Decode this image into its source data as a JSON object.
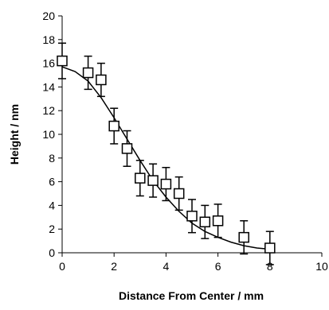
{
  "chart_data": {
    "type": "scatter",
    "title": "",
    "xlabel": "Distance From Center / mm",
    "ylabel": "Height / nm",
    "xlim": [
      0,
      10
    ],
    "ylim": [
      0,
      20
    ],
    "x_ticks": [
      0,
      2,
      4,
      6,
      8,
      10
    ],
    "y_ticks": [
      0,
      2,
      4,
      6,
      8,
      10,
      12,
      14,
      16,
      18,
      20
    ],
    "grid": false,
    "legend": "none",
    "series": [
      {
        "marker": "open-square",
        "points": [
          {
            "x": 0,
            "y": 16.2,
            "err": 1.5
          },
          {
            "x": 1,
            "y": 15.2,
            "err": 1.4
          },
          {
            "x": 1.5,
            "y": 14.6,
            "err": 1.4
          },
          {
            "x": 2,
            "y": 10.7,
            "err": 1.5
          },
          {
            "x": 2.5,
            "y": 8.8,
            "err": 1.5
          },
          {
            "x": 3,
            "y": 6.3,
            "err": 1.5
          },
          {
            "x": 3.5,
            "y": 6.1,
            "err": 1.4
          },
          {
            "x": 4,
            "y": 5.8,
            "err": 1.4
          },
          {
            "x": 4.5,
            "y": 5.0,
            "err": 1.4
          },
          {
            "x": 5,
            "y": 3.1,
            "err": 1.4
          },
          {
            "x": 5.5,
            "y": 2.6,
            "err": 1.4
          },
          {
            "x": 6,
            "y": 2.7,
            "err": 1.4
          },
          {
            "x": 7,
            "y": 1.3,
            "err": 1.4
          },
          {
            "x": 8,
            "y": 0.4,
            "err": 1.4
          }
        ]
      }
    ],
    "fit_curve": {
      "type": "line",
      "x": [
        0,
        0.5,
        1,
        1.5,
        2,
        2.5,
        3,
        3.5,
        4,
        4.5,
        5,
        5.5,
        6,
        6.5,
        7,
        7.5,
        8
      ],
      "y": [
        15.7,
        15.3,
        14.5,
        13.1,
        11.4,
        9.6,
        7.8,
        6.1,
        4.7,
        3.5,
        2.5,
        1.8,
        1.3,
        0.9,
        0.6,
        0.4,
        0.3
      ]
    }
  }
}
